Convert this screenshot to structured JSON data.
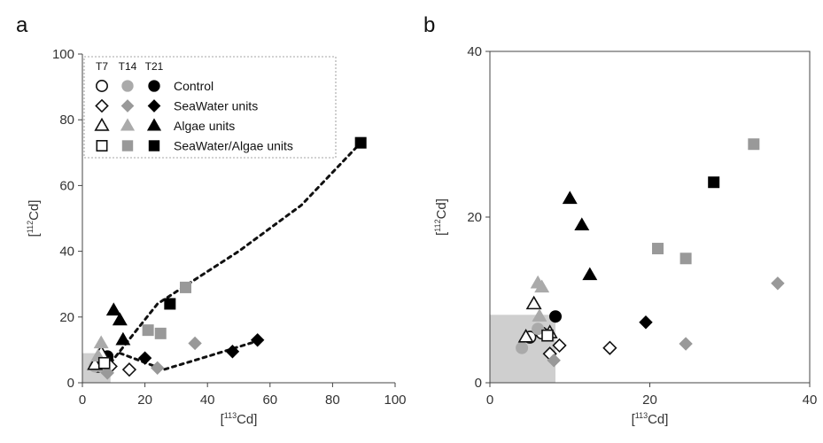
{
  "chart_data": [
    {
      "panel_label": "a",
      "type": "scatter",
      "xlabel": {
        "prefix": "[",
        "sup": "113",
        "main": "Cd]"
      },
      "ylabel": {
        "prefix": "[",
        "sup": "112",
        "main": "Cd]"
      },
      "xlim": [
        0,
        100
      ],
      "ylim": [
        0,
        100
      ],
      "xticks": [
        "0",
        "20",
        "40",
        "60",
        "80",
        "100"
      ],
      "yticks": [
        "0",
        "20",
        "40",
        "60",
        "80",
        "100"
      ],
      "shaded_region": {
        "x": [
          0,
          9
        ],
        "y": [
          0,
          9
        ]
      },
      "legend": {
        "time_headers": [
          "T7",
          "T14",
          "T21"
        ],
        "entries": [
          "Control",
          "SeaWater units",
          "Algae units",
          "SeaWater/Algae units"
        ]
      },
      "series": [
        {
          "name": "Control",
          "time": "T7",
          "shape": "circle",
          "fill": "#ffffff",
          "points": [
            [
              5,
              5
            ],
            [
              6,
              6
            ]
          ]
        },
        {
          "name": "Control",
          "time": "T14",
          "shape": "circle",
          "fill": "#aaaaaa",
          "points": [
            [
              4,
              5
            ],
            [
              6,
              5
            ]
          ]
        },
        {
          "name": "Control",
          "time": "T21",
          "shape": "circle",
          "fill": "#000000",
          "points": [
            [
              8,
              8
            ]
          ]
        },
        {
          "name": "SeaWater units",
          "time": "T7",
          "shape": "diamond",
          "fill": "#ffffff",
          "points": [
            [
              9,
              5
            ],
            [
              15,
              4
            ]
          ]
        },
        {
          "name": "SeaWater units",
          "time": "T14",
          "shape": "diamond",
          "fill": "#999999",
          "points": [
            [
              8,
              3
            ],
            [
              24,
              4.5
            ],
            [
              36,
              12
            ]
          ]
        },
        {
          "name": "SeaWater units",
          "time": "T21",
          "shape": "diamond",
          "fill": "#000000",
          "points": [
            [
              20,
              7.5
            ],
            [
              48,
              9.5
            ],
            [
              56,
              13
            ]
          ]
        },
        {
          "name": "Algae units",
          "time": "T7",
          "shape": "triangle",
          "fill": "#ffffff",
          "points": [
            [
              4,
              5.5
            ],
            [
              6,
              9
            ]
          ]
        },
        {
          "name": "Algae units",
          "time": "T14",
          "shape": "triangle",
          "fill": "#aaaaaa",
          "points": [
            [
              5,
              8
            ],
            [
              6,
              12
            ]
          ]
        },
        {
          "name": "Algae units",
          "time": "T21",
          "shape": "triangle",
          "fill": "#000000",
          "points": [
            [
              10,
              22
            ],
            [
              12,
              19
            ],
            [
              13,
              13
            ]
          ]
        },
        {
          "name": "SeaWater/Algae units",
          "time": "T7",
          "shape": "square",
          "fill": "#ffffff",
          "points": [
            [
              7,
              6
            ]
          ]
        },
        {
          "name": "SeaWater/Algae units",
          "time": "T14",
          "shape": "square",
          "fill": "#999999",
          "points": [
            [
              21,
              16
            ],
            [
              25,
              15
            ],
            [
              33,
              29
            ]
          ]
        },
        {
          "name": "SeaWater/Algae units",
          "time": "T21",
          "shape": "square",
          "fill": "#000000",
          "points": [
            [
              28,
              24
            ],
            [
              89,
              73
            ]
          ]
        }
      ],
      "trend_lines": [
        {
          "type": "dotted",
          "points": [
            [
              9,
              6
            ],
            [
              24,
              24
            ],
            [
              50,
              40
            ],
            [
              70,
              54
            ],
            [
              89,
              73
            ]
          ]
        },
        {
          "type": "dotted",
          "points": [
            [
              12,
              9
            ],
            [
              26,
              4
            ],
            [
              40,
              8
            ],
            [
              57,
              13
            ]
          ]
        }
      ]
    },
    {
      "panel_label": "b",
      "type": "scatter",
      "xlabel": {
        "prefix": "[",
        "sup": "113",
        "main": "Cd]"
      },
      "ylabel": {
        "prefix": "[",
        "sup": "112",
        "main": "Cd]"
      },
      "xlim": [
        0,
        40
      ],
      "ylim": [
        0,
        40
      ],
      "xticks": [
        "0",
        "20",
        "40"
      ],
      "yticks": [
        "0",
        "20",
        "40"
      ],
      "shaded_region": {
        "x": [
          0,
          8.2
        ],
        "y": [
          0,
          8.2
        ]
      },
      "series": [
        {
          "name": "Control",
          "time": "T7",
          "shape": "circle",
          "fill": "#ffffff",
          "points": [
            [
              5,
              5.5
            ],
            [
              6.5,
              6
            ]
          ]
        },
        {
          "name": "Control",
          "time": "T14",
          "shape": "circle",
          "fill": "#aaaaaa",
          "points": [
            [
              4,
              4.2
            ],
            [
              6,
              6.5
            ]
          ]
        },
        {
          "name": "Control",
          "time": "T21",
          "shape": "circle",
          "fill": "#000000",
          "points": [
            [
              8.2,
              8
            ]
          ]
        },
        {
          "name": "SeaWater units",
          "time": "T7",
          "shape": "diamond",
          "fill": "#ffffff",
          "points": [
            [
              7.5,
              3.5
            ],
            [
              8.7,
              4.5
            ],
            [
              15,
              4.2
            ]
          ]
        },
        {
          "name": "SeaWater units",
          "time": "T14",
          "shape": "diamond",
          "fill": "#999999",
          "points": [
            [
              8,
              2.7
            ],
            [
              24.5,
              4.7
            ],
            [
              36,
              12
            ]
          ]
        },
        {
          "name": "SeaWater units",
          "time": "T21",
          "shape": "diamond",
          "fill": "#000000",
          "points": [
            [
              19.5,
              7.3
            ]
          ]
        },
        {
          "name": "Algae units",
          "time": "T7",
          "shape": "triangle",
          "fill": "#ffffff",
          "points": [
            [
              4.5,
              5.5
            ],
            [
              5.5,
              9.5
            ],
            [
              7.5,
              6
            ]
          ]
        },
        {
          "name": "Algae units",
          "time": "T14",
          "shape": "triangle",
          "fill": "#aaaaaa",
          "points": [
            [
              6,
              12
            ],
            [
              6.5,
              11.5
            ],
            [
              6.2,
              8
            ]
          ]
        },
        {
          "name": "Algae units",
          "time": "T21",
          "shape": "triangle",
          "fill": "#000000",
          "points": [
            [
              10,
              22.2
            ],
            [
              11.5,
              19
            ],
            [
              12.5,
              13
            ]
          ]
        },
        {
          "name": "SeaWater/Algae units",
          "time": "T7",
          "shape": "square",
          "fill": "#ffffff",
          "points": [
            [
              7.2,
              5.7
            ]
          ]
        },
        {
          "name": "SeaWater/Algae units",
          "time": "T14",
          "shape": "square",
          "fill": "#999999",
          "points": [
            [
              21,
              16.2
            ],
            [
              24.5,
              15
            ],
            [
              33,
              28.8
            ]
          ]
        },
        {
          "name": "SeaWater/Algae units",
          "time": "T21",
          "shape": "square",
          "fill": "#000000",
          "points": [
            [
              28,
              24.2
            ]
          ]
        }
      ]
    }
  ]
}
